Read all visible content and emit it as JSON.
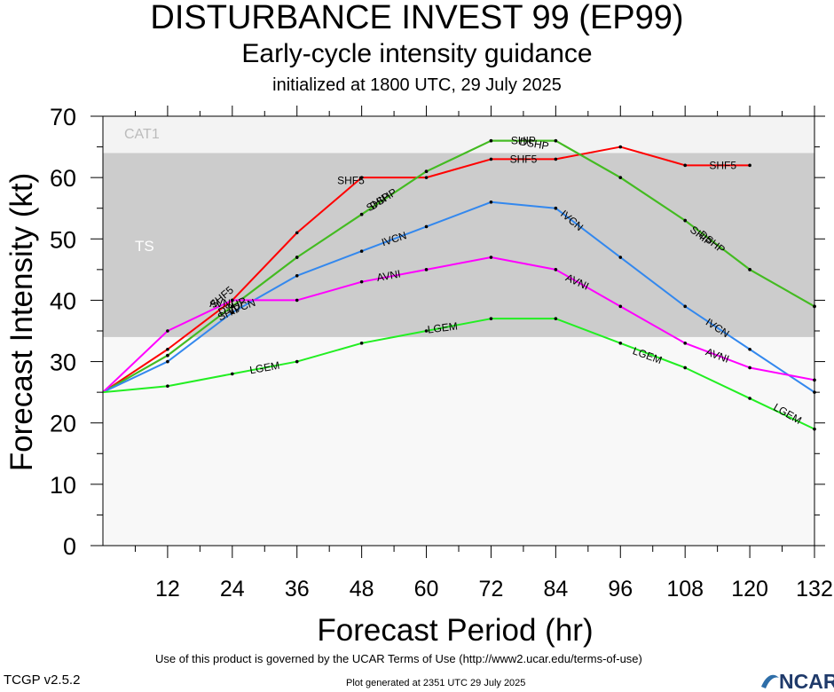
{
  "header": {
    "title": "DISTURBANCE INVEST 99 (EP99)",
    "subtitle": "Early-cycle intensity guidance",
    "init": "initialized at 1800 UTC, 29 July 2025"
  },
  "footer": {
    "terms": "Use of this product is governed by the UCAR Terms of Use (http://www2.ucar.edu/terms-of-use)",
    "version": "TCGP v2.5.2",
    "generated": "Plot generated at 2351 UTC   29 July 2025",
    "logo": "NCAR"
  },
  "chart_data": {
    "type": "line",
    "xlabel": "Forecast Period (hr)",
    "ylabel": "Forecast Intensity (kt)",
    "xlim": [
      0,
      132
    ],
    "ylim": [
      0,
      70
    ],
    "xticks": [
      12,
      24,
      36,
      48,
      60,
      72,
      84,
      96,
      108,
      120,
      132
    ],
    "yticks": [
      0,
      10,
      20,
      30,
      40,
      50,
      60,
      70
    ],
    "bands": [
      {
        "name": "TS",
        "from": 34,
        "to": 64,
        "color": "#cccccc"
      },
      {
        "name": "CAT1",
        "from": 64,
        "to": 70,
        "color": "#f3f3f3"
      }
    ],
    "background_color": "#f8f8f8",
    "series": [
      {
        "name": "SHF5",
        "color": "#ff0000",
        "x": [
          0,
          12,
          24,
          36,
          48,
          60,
          72,
          84,
          96,
          108,
          120
        ],
        "y": [
          25,
          32,
          40,
          51,
          60,
          60,
          63,
          63,
          65,
          62,
          62
        ]
      },
      {
        "name": "DSHP",
        "color": "#44bb22",
        "x": [
          0,
          12,
          24,
          36,
          48,
          60,
          72,
          84,
          96,
          108,
          120,
          132
        ],
        "y": [
          25,
          31,
          39,
          47,
          54,
          61,
          66,
          66,
          60,
          53,
          45,
          39
        ]
      },
      {
        "name": "SHIP",
        "color": "#44bb22",
        "x": [
          0,
          12,
          24,
          36,
          48,
          60,
          72,
          84,
          96,
          108,
          120,
          132
        ],
        "y": [
          25,
          31,
          39,
          47,
          54,
          61,
          66,
          66,
          60,
          53,
          45,
          39
        ]
      },
      {
        "name": "IVCN",
        "color": "#3388ee",
        "x": [
          0,
          12,
          24,
          36,
          48,
          60,
          72,
          84,
          96,
          108,
          120,
          132
        ],
        "y": [
          25,
          30,
          38,
          44,
          48,
          52,
          56,
          55,
          47,
          39,
          32,
          25
        ]
      },
      {
        "name": "AVNI",
        "color": "#ff00ff",
        "x": [
          0,
          12,
          24,
          36,
          48,
          60,
          72,
          84,
          96,
          108,
          120,
          132
        ],
        "y": [
          25,
          35,
          40,
          40,
          43,
          45,
          47,
          45,
          39,
          33,
          29,
          27
        ]
      },
      {
        "name": "LGEM",
        "color": "#22ee22",
        "x": [
          0,
          12,
          24,
          36,
          48,
          60,
          72,
          84,
          96,
          108,
          120,
          132
        ],
        "y": [
          25,
          26,
          28,
          30,
          33,
          35,
          37,
          37,
          33,
          29,
          24,
          19
        ]
      }
    ],
    "annotations": [
      {
        "text": "SHF5",
        "x": 46,
        "y": 59.5,
        "angle": 0
      },
      {
        "text": "SHF5",
        "x": 78,
        "y": 63,
        "angle": 0
      },
      {
        "text": "SHF5",
        "x": 115,
        "y": 62,
        "angle": 0
      },
      {
        "text": "SHF5",
        "x": 22,
        "y": 40.5,
        "angle": -40
      },
      {
        "text": "DSHP",
        "x": 52,
        "y": 56.5,
        "angle": -33
      },
      {
        "text": "SHIP",
        "x": 51,
        "y": 56,
        "angle": -33
      },
      {
        "text": "DSHP",
        "x": 80,
        "y": 65.5,
        "angle": 10
      },
      {
        "text": "SHIP",
        "x": 78,
        "y": 66,
        "angle": 0
      },
      {
        "text": "DSHP",
        "x": 113,
        "y": 49.5,
        "angle": 38
      },
      {
        "text": "SHIP",
        "x": 111,
        "y": 50.5,
        "angle": 38
      },
      {
        "text": "DSHP",
        "x": 24,
        "y": 39,
        "angle": -25
      },
      {
        "text": "SHIP",
        "x": 23.5,
        "y": 38,
        "angle": -25
      },
      {
        "text": "IVCN",
        "x": 54,
        "y": 50,
        "angle": -18
      },
      {
        "text": "IVCN",
        "x": 87,
        "y": 53,
        "angle": 40
      },
      {
        "text": "IVCN",
        "x": 114,
        "y": 35.5,
        "angle": 33
      },
      {
        "text": "IVCN",
        "x": 26,
        "y": 39,
        "angle": -20
      },
      {
        "text": "AVNI",
        "x": 53,
        "y": 44,
        "angle": -10
      },
      {
        "text": "AVNI",
        "x": 88,
        "y": 43,
        "angle": 25
      },
      {
        "text": "AVNI",
        "x": 114,
        "y": 31,
        "angle": 20
      },
      {
        "text": "AVNI",
        "x": 22,
        "y": 39.5,
        "angle": 0
      },
      {
        "text": "LGEM",
        "x": 30,
        "y": 29,
        "angle": -10
      },
      {
        "text": "LGEM",
        "x": 63,
        "y": 35.5,
        "angle": -7
      },
      {
        "text": "LGEM",
        "x": 101,
        "y": 31,
        "angle": 20
      },
      {
        "text": "LGEM",
        "x": 127,
        "y": 21.5,
        "angle": 30
      }
    ]
  }
}
